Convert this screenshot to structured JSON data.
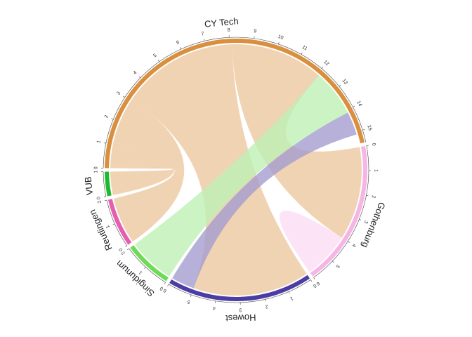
{
  "chart_data": {
    "type": "chord",
    "title": "",
    "sectors": [
      {
        "name": "CY Tech",
        "total": 15.5,
        "color": "#D98F3D",
        "ticks": [
          0,
          1,
          2,
          3,
          4,
          5,
          6,
          7,
          8,
          9,
          10,
          11,
          12,
          13,
          14,
          15
        ]
      },
      {
        "name": "Gothenburg",
        "total": 6.0,
        "color": "#F7B5E6",
        "ticks": [
          0,
          1,
          2,
          3,
          4,
          5,
          6
        ]
      },
      {
        "name": "Howest",
        "total": 6.0,
        "color": "#4B3DA3",
        "ticks": [
          0,
          1,
          2,
          3,
          4,
          5,
          6
        ]
      },
      {
        "name": "Singidunum",
        "total": 2.0,
        "color": "#6DDB56",
        "ticks": [
          0,
          1,
          2
        ]
      },
      {
        "name": "Reutlingen",
        "total": 2.0,
        "color": "#E45FAF",
        "ticks": [
          0,
          1,
          2
        ]
      },
      {
        "name": "VUB",
        "total": 1.0,
        "color": "#1DB92E",
        "ticks": [
          0,
          1
        ]
      }
    ],
    "links": [
      {
        "from": "CY Tech",
        "to": "CY Tech",
        "value": 0.05,
        "color": "#ECC8A0"
      },
      {
        "from": "CY Tech",
        "to": "VUB",
        "value": 1.0,
        "color": "#ECC8A0"
      },
      {
        "from": "CY Tech",
        "to": "Reutlingen",
        "value": 2.0,
        "color": "#ECC8A0"
      },
      {
        "from": "CY Tech",
        "to": "Howest",
        "value": 5.0,
        "color": "#ECC8A0"
      },
      {
        "from": "CY Tech",
        "to": "Gothenburg",
        "value": 4.0,
        "color": "#ECC8A0"
      },
      {
        "from": "Singidunum",
        "to": "CY Tech",
        "value": 2.0,
        "color": "#BEF0B4"
      },
      {
        "from": "Howest",
        "to": "CY Tech",
        "value": 1.0,
        "color": "#A59ECF"
      },
      {
        "from": "Gothenburg",
        "to": "Gothenburg",
        "value": 1.0,
        "color": "#FBDDF4"
      }
    ]
  }
}
